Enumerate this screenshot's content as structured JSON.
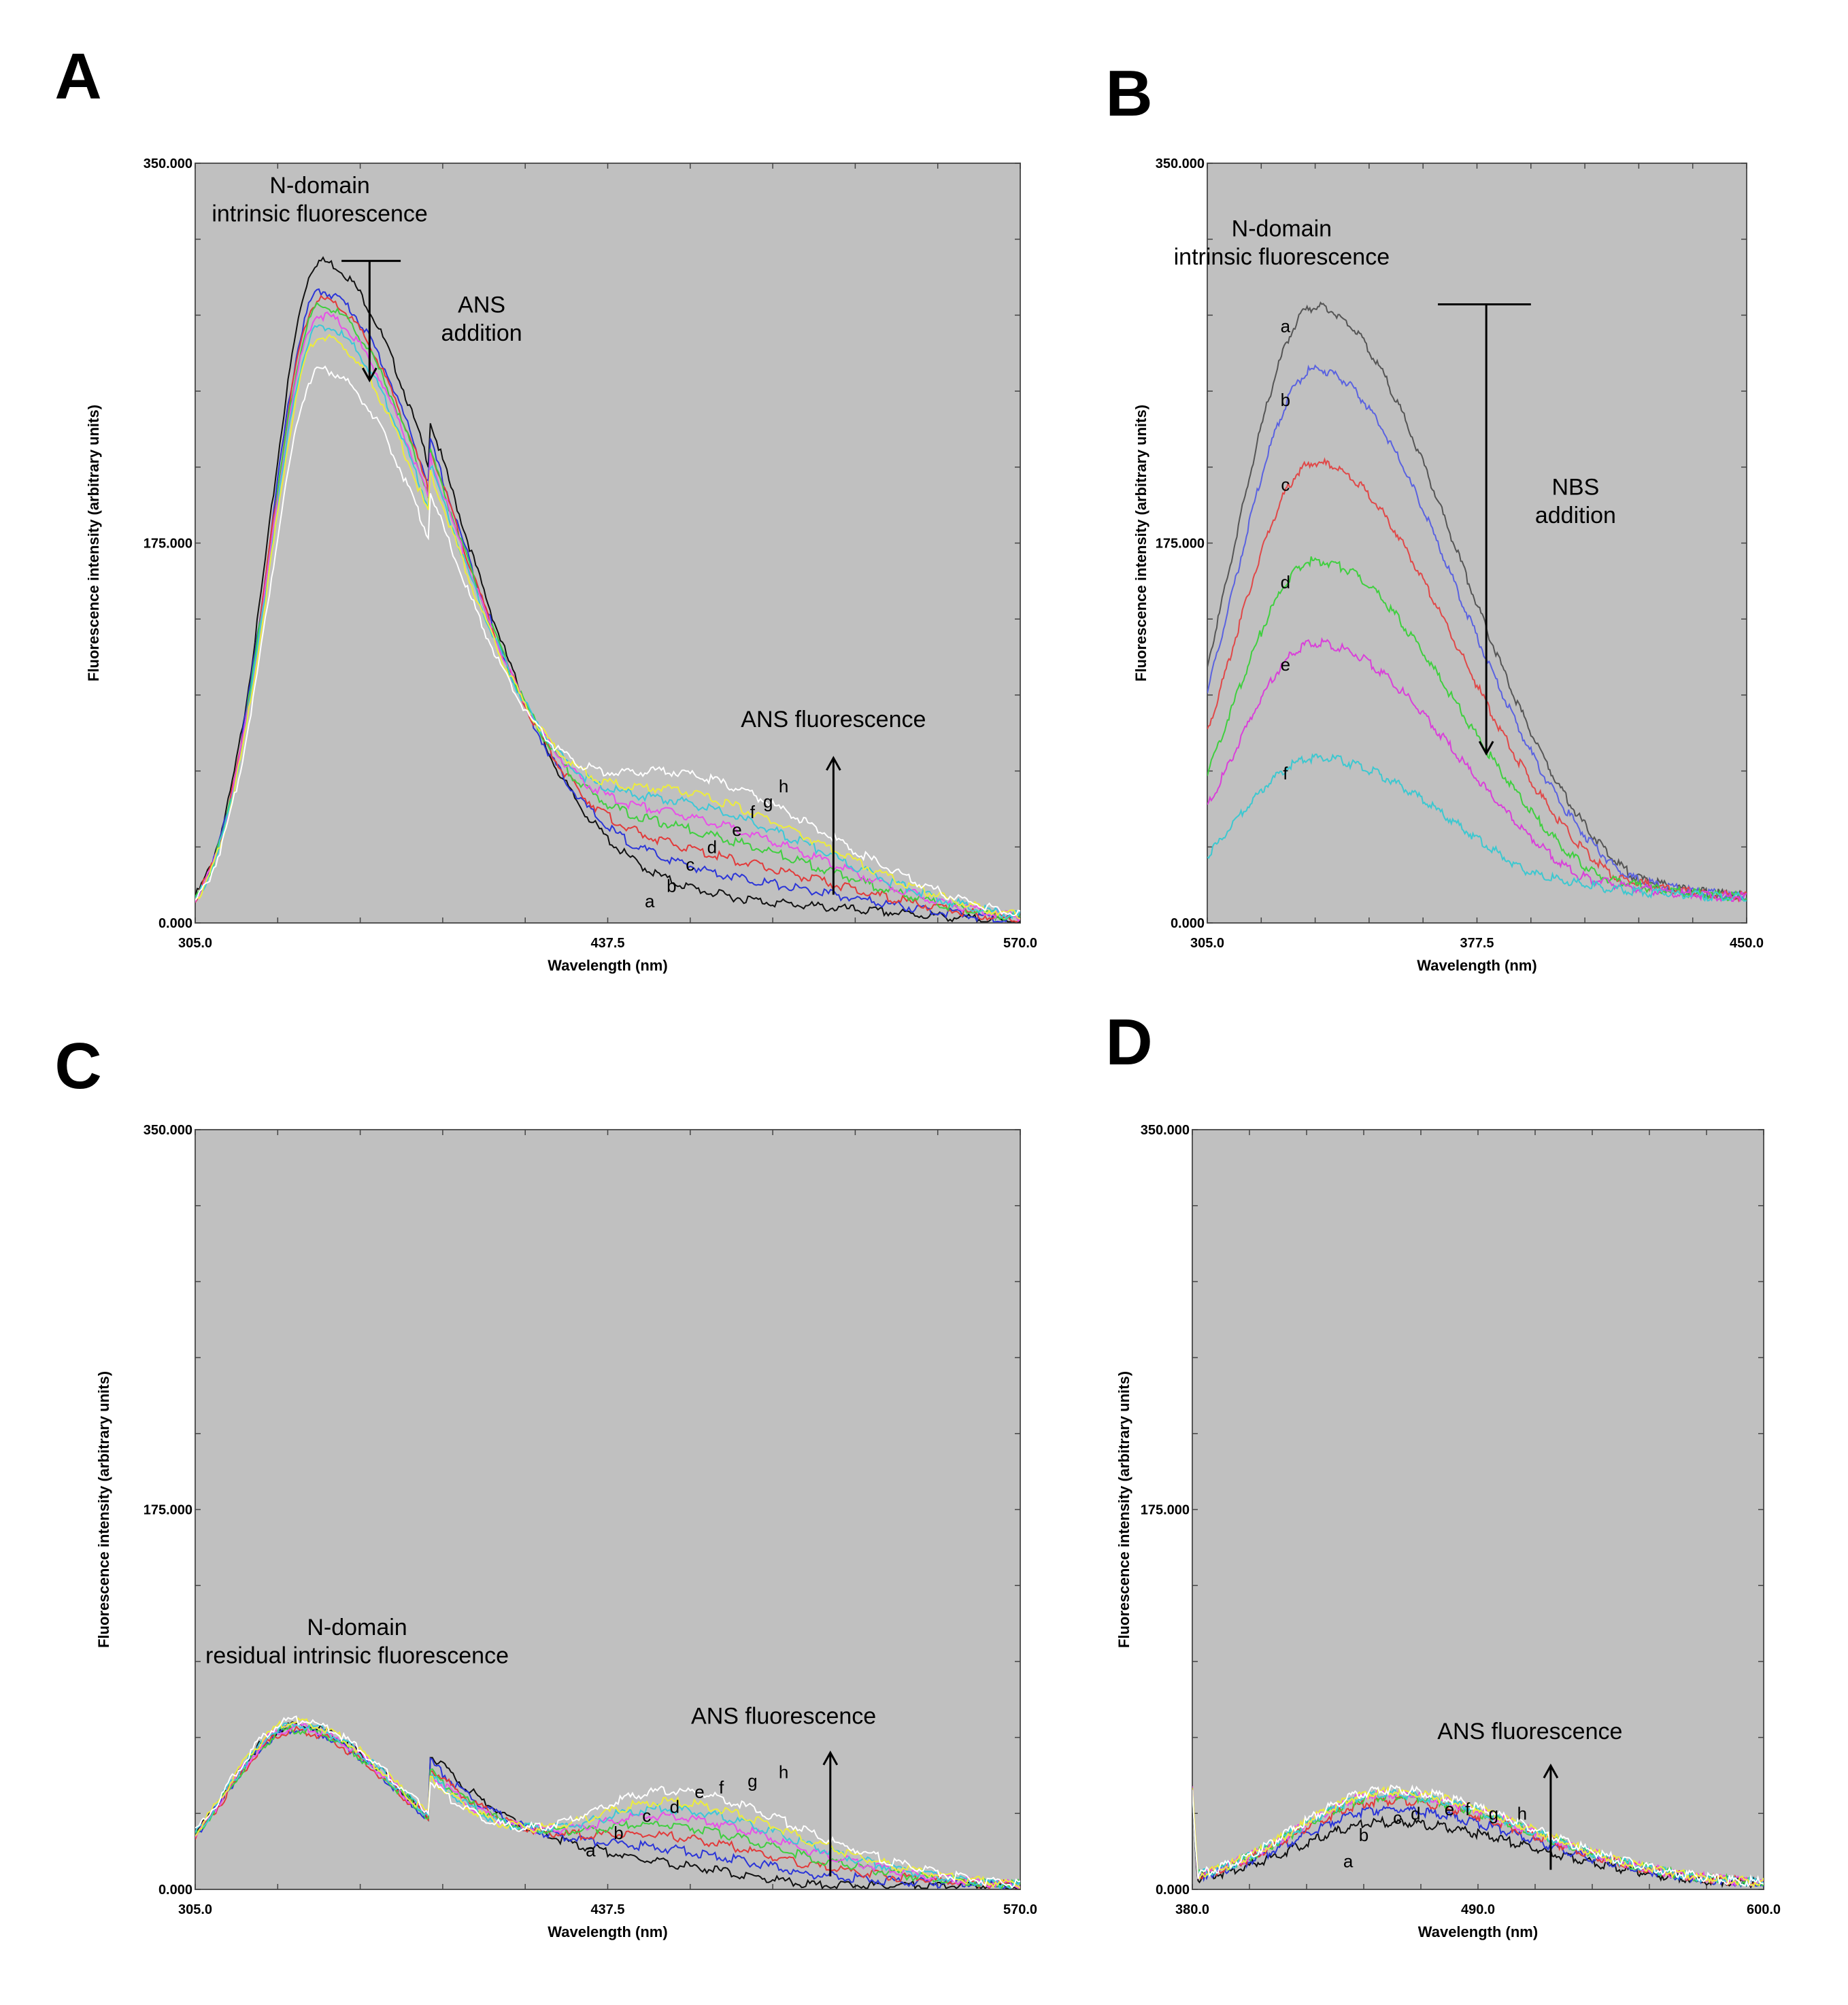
{
  "chart_data": [
    {
      "panel": "A",
      "type": "line",
      "xlabel": "Wavelength (nm)",
      "ylabel": "Fluorescence intensity (arbitrary units)",
      "xlim": [
        305.0,
        570.0
      ],
      "ylim": [
        0,
        350
      ],
      "xticks": [
        "305.0",
        "437.5",
        "570.0"
      ],
      "yticks": [
        "0.000",
        "175.000",
        "350.000"
      ],
      "annotations": [
        {
          "text": "N-domain",
          "x": 345,
          "y": 340
        },
        {
          "text": "intrinsic fluorescence",
          "x": 345,
          "y": 327
        },
        {
          "text": "ANS",
          "x": 397,
          "y": 285
        },
        {
          "text": "addition",
          "x": 397,
          "y": 272
        },
        {
          "text": "ANS fluorescence",
          "x": 510,
          "y": 94
        }
      ],
      "arrows": [
        {
          "kind": "down",
          "x": 361,
          "y_from": 305,
          "y_to": 250,
          "bar_x": [
            352,
            371
          ]
        },
        {
          "kind": "up",
          "x": 510,
          "y_from": 13,
          "y_to": 76
        }
      ],
      "series": [
        {
          "name": "a",
          "color": "#111111",
          "peak1": 306,
          "peak2": 0,
          "label_x": 451,
          "label_y": 10
        },
        {
          "name": "b",
          "color": "#2b35d8",
          "peak1": 292,
          "peak2": 10,
          "label_x": 458,
          "label_y": 17
        },
        {
          "name": "c",
          "color": "#e23a3a",
          "peak1": 288,
          "peak2": 18,
          "label_x": 464,
          "label_y": 27
        },
        {
          "name": "d",
          "color": "#3fcf3f",
          "peak1": 285,
          "peak2": 27,
          "label_x": 471,
          "label_y": 35
        },
        {
          "name": "e",
          "color": "#e84fe8",
          "peak1": 281,
          "peak2": 33,
          "label_x": 479,
          "label_y": 43
        },
        {
          "name": "f",
          "color": "#3cc8d8",
          "peak1": 276,
          "peak2": 39,
          "label_x": 484,
          "label_y": 51
        },
        {
          "name": "g",
          "color": "#ecec3c",
          "peak1": 271,
          "peak2": 44,
          "label_x": 489,
          "label_y": 56
        },
        {
          "name": "h",
          "color": "#ffffff",
          "peak1": 256,
          "peak2": 53,
          "label_x": 494,
          "label_y": 63
        }
      ]
    },
    {
      "panel": "B",
      "type": "line",
      "xlabel": "Wavelength (nm)",
      "ylabel": "Fluorescence intensity (arbitrary units)",
      "xlim": [
        305.0,
        450.0
      ],
      "ylim": [
        0,
        350
      ],
      "xticks": [
        "305.0",
        "377.5",
        "450.0"
      ],
      "yticks": [
        "0.000",
        "175.000",
        "350.000"
      ],
      "annotations": [
        {
          "text": "N-domain",
          "x": 325,
          "y": 320
        },
        {
          "text": "intrinsic fluorescence",
          "x": 325,
          "y": 307
        },
        {
          "text": "NBS",
          "x": 404,
          "y": 201
        },
        {
          "text": "addition",
          "x": 404,
          "y": 188
        }
      ],
      "arrows": [
        {
          "kind": "down",
          "x": 380,
          "y_from": 285,
          "y_to": 78,
          "bar_x": [
            367,
            392
          ]
        }
      ],
      "series": [
        {
          "name": "a",
          "color": "#555555",
          "peak": 285,
          "label_x": 326,
          "label_y": 275
        },
        {
          "name": "b",
          "color": "#5a62e0",
          "peak": 256,
          "label_x": 326,
          "label_y": 241
        },
        {
          "name": "c",
          "color": "#e04848",
          "peak": 213,
          "label_x": 326,
          "label_y": 202
        },
        {
          "name": "d",
          "color": "#3fcf3f",
          "peak": 168,
          "label_x": 326,
          "label_y": 157
        },
        {
          "name": "e",
          "color": "#d940d9",
          "peak": 130,
          "label_x": 326,
          "label_y": 119
        },
        {
          "name": "f",
          "color": "#3cc8d0",
          "peak": 77,
          "label_x": 326,
          "label_y": 69
        }
      ]
    },
    {
      "panel": "C",
      "type": "line",
      "xlabel": "Wavelength (nm)",
      "ylabel": "Fluorescence intensity (arbitrary units)",
      "xlim": [
        305.0,
        570.0
      ],
      "ylim": [
        0,
        350
      ],
      "xticks": [
        "305.0",
        "437.5",
        "570.0"
      ],
      "yticks": [
        "0.000",
        "175.000",
        "350.000"
      ],
      "annotations": [
        {
          "text": "N-domain",
          "x": 357,
          "y": 121
        },
        {
          "text": "residual intrinsic fluorescence",
          "x": 357,
          "y": 108
        },
        {
          "text": "ANS fluorescence",
          "x": 494,
          "y": 80
        }
      ],
      "arrows": [
        {
          "kind": "up",
          "x": 509,
          "y_from": 6,
          "y_to": 63
        }
      ],
      "series": [
        {
          "name": "a",
          "color": "#111111",
          "peak1": 77,
          "peak2": 0,
          "label_x": 432,
          "label_y": 18
        },
        {
          "name": "b",
          "color": "#2b35d8",
          "peak1": 75,
          "peak2": 8,
          "label_x": 441,
          "label_y": 26
        },
        {
          "name": "c",
          "color": "#e23a3a",
          "peak1": 74,
          "peak2": 15,
          "label_x": 450,
          "label_y": 34
        },
        {
          "name": "d",
          "color": "#3fcf3f",
          "peak1": 75,
          "peak2": 21,
          "label_x": 459,
          "label_y": 38
        },
        {
          "name": "e",
          "color": "#e84fe8",
          "peak1": 76,
          "peak2": 26,
          "label_x": 467,
          "label_y": 45
        },
        {
          "name": "f",
          "color": "#3cc8d8",
          "peak1": 77,
          "peak2": 30,
          "label_x": 474,
          "label_y": 47
        },
        {
          "name": "g",
          "color": "#ecec3c",
          "peak1": 78,
          "peak2": 34,
          "label_x": 484,
          "label_y": 50
        },
        {
          "name": "h",
          "color": "#ffffff",
          "peak1": 79,
          "peak2": 40,
          "label_x": 494,
          "label_y": 54
        }
      ]
    },
    {
      "panel": "D",
      "type": "line",
      "xlabel": "Wavelength (nm)",
      "ylabel": "Fluorescence intensity (arbitrary units)",
      "xlim": [
        380.0,
        600.0
      ],
      "ylim": [
        0,
        350
      ],
      "xticks": [
        "380.0",
        "490.0",
        "600.0"
      ],
      "yticks": [
        "0.000",
        "175.000",
        "350.000"
      ],
      "annotations": [
        {
          "text": "ANS fluorescence",
          "x": 510,
          "y": 73
        }
      ],
      "arrows": [
        {
          "kind": "up",
          "x": 518,
          "y_from": 9,
          "y_to": 57
        }
      ],
      "series": [
        {
          "name": "a",
          "color": "#111111",
          "peak": 29,
          "label_x": 440,
          "label_y": 13
        },
        {
          "name": "b",
          "color": "#2b35d8",
          "peak": 35,
          "label_x": 446,
          "label_y": 25
        },
        {
          "name": "c",
          "color": "#e23a3a",
          "peak": 39,
          "label_x": 459,
          "label_y": 33
        },
        {
          "name": "d",
          "color": "#3fcf3f",
          "peak": 41,
          "label_x": 466,
          "label_y": 35
        },
        {
          "name": "e",
          "color": "#e84fe8",
          "peak": 42,
          "label_x": 479,
          "label_y": 37
        },
        {
          "name": "f",
          "color": "#3cc8d8",
          "peak": 42,
          "label_x": 486,
          "label_y": 37
        },
        {
          "name": "g",
          "color": "#ecec3c",
          "peak": 43,
          "label_x": 496,
          "label_y": 35
        },
        {
          "name": "h",
          "color": "#ffffff",
          "peak": 44,
          "label_x": 507,
          "label_y": 35
        }
      ]
    }
  ]
}
